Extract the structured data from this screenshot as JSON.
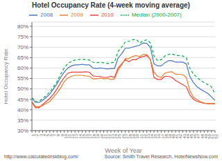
{
  "chart_data": {
    "type": "line",
    "title": "Hotel Occupancy Rate (4-week moving average)",
    "xlabel": "Week of Year",
    "ylabel": "Hotel Occupancy Rate",
    "annotations": [
      "http://www.calculatedriskblog.com/",
      "Source: Smith Travel Research, HotelNewsNow.com"
    ],
    "x": [
      1,
      2,
      3,
      4,
      5,
      6,
      7,
      8,
      9,
      10,
      11,
      12,
      13,
      14,
      15,
      16,
      17,
      18,
      19,
      20,
      21,
      22,
      23,
      24,
      25,
      26,
      27,
      28,
      29,
      30,
      31,
      32,
      33,
      34,
      35,
      36,
      37,
      38,
      39,
      40,
      41,
      42,
      43,
      44,
      45,
      46,
      47,
      48,
      49,
      50,
      51,
      52
    ],
    "xlim": [
      1,
      52
    ],
    "xticks": [
      1,
      2,
      3,
      4,
      5,
      6,
      7,
      8,
      9,
      10,
      11,
      12,
      13,
      14,
      15,
      16,
      17,
      18,
      19,
      20,
      21,
      22,
      23,
      24,
      25,
      26,
      27,
      28,
      29,
      30,
      31,
      32,
      33,
      34,
      35,
      36,
      37,
      38,
      39,
      40,
      41,
      42,
      43,
      44,
      45,
      46,
      47,
      48,
      49,
      50,
      51,
      52
    ],
    "ylim": [
      0.3,
      0.82
    ],
    "yticks": [
      {
        "value": 0.3,
        "label": "30%"
      },
      {
        "value": 0.35,
        "label": "35%"
      },
      {
        "value": 0.4,
        "label": "40%"
      },
      {
        "value": 0.45,
        "label": "45%"
      },
      {
        "value": 0.5,
        "label": "50%"
      },
      {
        "value": 0.55,
        "label": "55%"
      },
      {
        "value": 0.6,
        "label": "60%"
      },
      {
        "value": 0.65,
        "label": "65%"
      },
      {
        "value": 0.7,
        "label": "70%"
      },
      {
        "value": 0.75,
        "label": "75%"
      },
      {
        "value": 0.8,
        "label": "80%"
      }
    ],
    "grid": true,
    "legend": "top",
    "series": [
      {
        "name": "2010",
        "color": "#e8413c",
        "line_style": "solid",
        "values": [
          0.435,
          0.41,
          0.41,
          0.425,
          0.44,
          0.455,
          0.475,
          0.5,
          0.53,
          0.555,
          0.575,
          0.58,
          0.58,
          0.58,
          0.58,
          0.582,
          0.58,
          0.562,
          0.56,
          0.56,
          0.555,
          0.555,
          0.56,
          0.555,
          0.6,
          0.62,
          0.64,
          0.63,
          0.64,
          0.64,
          0.65,
          0.655,
          0.66,
          0.64,
          0.555,
          0.545,
          0.545,
          0.56,
          0.56,
          0.555,
          0.54,
          0.53,
          0.52,
          0.51,
          0.47,
          0.45,
          0.44,
          0.435,
          0.43,
          0.43,
          0.43,
          0.43
        ]
      },
      {
        "name": "2009",
        "color": "#e87d2a",
        "line_style": "solid",
        "values": [
          0.44,
          0.415,
          0.415,
          0.42,
          0.43,
          0.44,
          0.46,
          0.48,
          0.505,
          0.535,
          0.552,
          0.56,
          0.565,
          0.565,
          0.565,
          0.562,
          0.56,
          0.548,
          0.548,
          0.552,
          0.548,
          0.55,
          0.545,
          0.548,
          0.59,
          0.615,
          0.645,
          0.645,
          0.655,
          0.66,
          0.655,
          0.665,
          0.665,
          0.64,
          0.58,
          0.56,
          0.555,
          0.575,
          0.58,
          0.582,
          0.57,
          0.57,
          0.568,
          0.555,
          0.49,
          0.46,
          0.448,
          0.438,
          0.432,
          0.428,
          0.428,
          0.428
        ]
      },
      {
        "name": "2008",
        "color": "#4472c4",
        "line_style": "solid",
        "values": [
          0.455,
          0.435,
          0.435,
          0.445,
          0.46,
          0.475,
          0.5,
          0.525,
          0.555,
          0.58,
          0.6,
          0.61,
          0.615,
          0.615,
          0.618,
          0.615,
          0.615,
          0.6,
          0.598,
          0.6,
          0.598,
          0.595,
          0.598,
          0.598,
          0.648,
          0.668,
          0.695,
          0.695,
          0.7,
          0.705,
          0.71,
          0.72,
          0.718,
          0.698,
          0.62,
          0.61,
          0.61,
          0.625,
          0.635,
          0.635,
          0.628,
          0.628,
          0.628,
          0.62,
          0.558,
          0.53,
          0.51,
          0.498,
          0.488,
          0.478,
          0.462,
          0.445
        ]
      },
      {
        "name": "Median (2000-2007)",
        "color": "#00aa44",
        "line_style": "dashed",
        "values": [
          0.458,
          0.44,
          0.44,
          0.455,
          0.468,
          0.485,
          0.51,
          0.535,
          0.57,
          0.6,
          0.622,
          0.632,
          0.638,
          0.64,
          0.642,
          0.64,
          0.638,
          0.628,
          0.625,
          0.628,
          0.625,
          0.622,
          0.625,
          0.628,
          0.68,
          0.7,
          0.725,
          0.728,
          0.735,
          0.738,
          0.72,
          0.73,
          0.735,
          0.72,
          0.658,
          0.635,
          0.64,
          0.658,
          0.665,
          0.668,
          0.66,
          0.66,
          0.658,
          0.648,
          0.598,
          0.57,
          0.555,
          0.54,
          0.53,
          0.52,
          0.51,
          0.475
        ]
      }
    ]
  }
}
